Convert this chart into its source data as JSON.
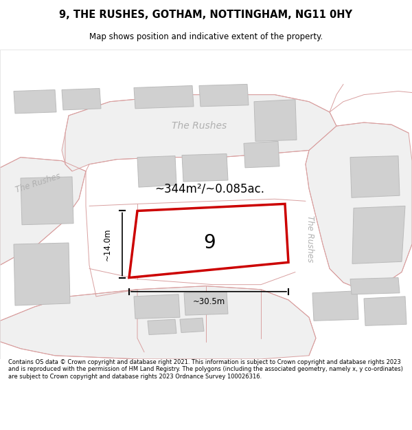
{
  "title": "9, THE RUSHES, GOTHAM, NOTTINGHAM, NG11 0HY",
  "subtitle": "Map shows position and indicative extent of the property.",
  "footer": "Contains OS data © Crown copyright and database right 2021. This information is subject to Crown copyright and database rights 2023 and is reproduced with the permission of HM Land Registry. The polygons (including the associated geometry, namely x, y co-ordinates) are subject to Crown copyright and database rights 2023 Ordnance Survey 100026316.",
  "bg_color": "#ffffff",
  "map_bg": "#ffffff",
  "road_stroke": "#d9a0a0",
  "building_fill": "#d0d0d0",
  "building_stroke": "#bbbbbb",
  "road_area_fill": "#eeeeee",
  "plot_stroke": "#cc0000",
  "plot_fill": "#ffffff",
  "plot_label": "9",
  "area_label": "~344m²/~0.085ac.",
  "dim_label_h": "~14.0m",
  "dim_label_w": "~30.5m",
  "road_color": "#c8a0a0",
  "road_label_color": "#b0b0b0",
  "road_label_nw": "The Rushes",
  "road_label_top": "The Rushes",
  "road_label_right": "The Rushes"
}
